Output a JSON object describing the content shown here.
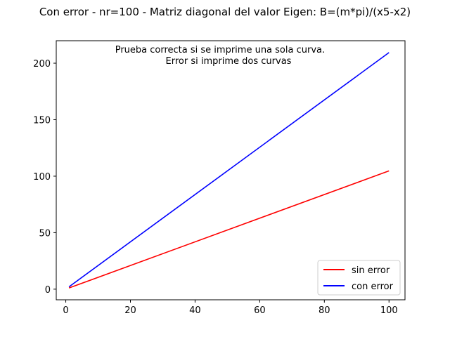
{
  "chart_data": {
    "type": "line",
    "title": "Con error - nr=100 - Matriz diagonal del valor Eigen: B=(m*pi)/(x5-x2)",
    "xlabel": "",
    "ylabel": "",
    "xlim": [
      -2.95,
      104.95
    ],
    "ylim": [
      -9.4,
      219.9
    ],
    "xticks": [
      0,
      20,
      40,
      60,
      80,
      100
    ],
    "yticks": [
      0,
      50,
      100,
      150,
      200
    ],
    "grid": false,
    "legend_position": "lower-right",
    "annotation": [
      "Prueba correcta si se imprime una sola curva.",
      "Error si imprime dos curvas"
    ],
    "series": [
      {
        "name": "sin error",
        "color": "#ff0000",
        "x": [
          1,
          100
        ],
        "y": [
          1.05,
          104.7
        ]
      },
      {
        "name": "con error",
        "color": "#0000ff",
        "x": [
          1,
          100
        ],
        "y": [
          2.09,
          209.4
        ]
      }
    ]
  }
}
